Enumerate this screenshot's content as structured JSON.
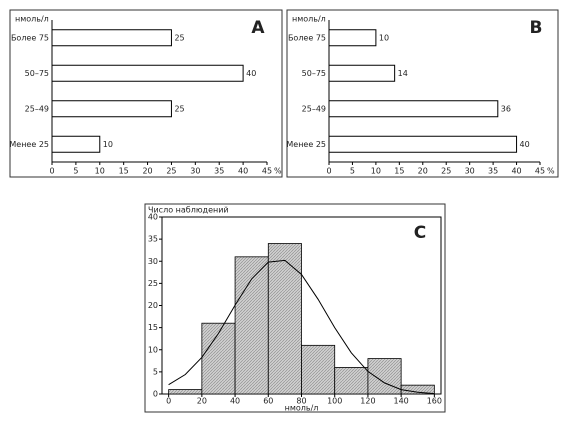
{
  "chart_data": [
    {
      "type": "barh",
      "label": "A",
      "ylabel": "нмоль/л",
      "categories": [
        "Более 75",
        "50–75",
        "25–49",
        "Менее 25"
      ],
      "values": [
        25,
        40,
        25,
        10
      ],
      "color": "#ffffff",
      "xlim": [
        0,
        45
      ],
      "xticks": [
        0,
        5,
        10,
        15,
        20,
        25,
        30,
        35,
        40,
        45
      ],
      "xunit": "%"
    },
    {
      "type": "barh",
      "label": "B",
      "ylabel": "нмоль/л",
      "categories": [
        "Более 75",
        "50–75",
        "25–49",
        "Менее 25"
      ],
      "values": [
        10,
        14,
        36,
        40
      ],
      "color": "#ffffff",
      "xlim": [
        0,
        45
      ],
      "xticks": [
        0,
        5,
        10,
        15,
        20,
        25,
        30,
        35,
        40,
        45
      ],
      "xunit": "%"
    },
    {
      "type": "histogram",
      "label": "C",
      "ylabel": "Число наблюдений",
      "xlabel": "нмоль/л",
      "bins": [
        0,
        20,
        40,
        60,
        80,
        100,
        120,
        140,
        160
      ],
      "values": [
        1,
        16,
        31,
        34,
        11,
        6,
        8,
        2
      ],
      "color": "#c8c8c8",
      "curve": {
        "x": [
          0,
          10,
          20,
          30,
          40,
          50,
          60,
          70,
          80,
          90,
          100,
          110,
          120,
          130,
          140,
          150,
          160
        ],
        "values": [
          2.1,
          4.4,
          8.3,
          13.7,
          20.1,
          26.0,
          29.8,
          30.2,
          27.0,
          21.4,
          15.0,
          9.3,
          5.1,
          2.5,
          1.0,
          0.4,
          0.1
        ],
        "color": "#000000"
      },
      "xlim": [
        -4,
        164
      ],
      "ylim": [
        0,
        40
      ],
      "xticks": [
        0,
        20,
        40,
        60,
        80,
        100,
        120,
        140,
        160
      ],
      "yticks": [
        0,
        5,
        10,
        15,
        20,
        25,
        30,
        35,
        40
      ]
    }
  ]
}
